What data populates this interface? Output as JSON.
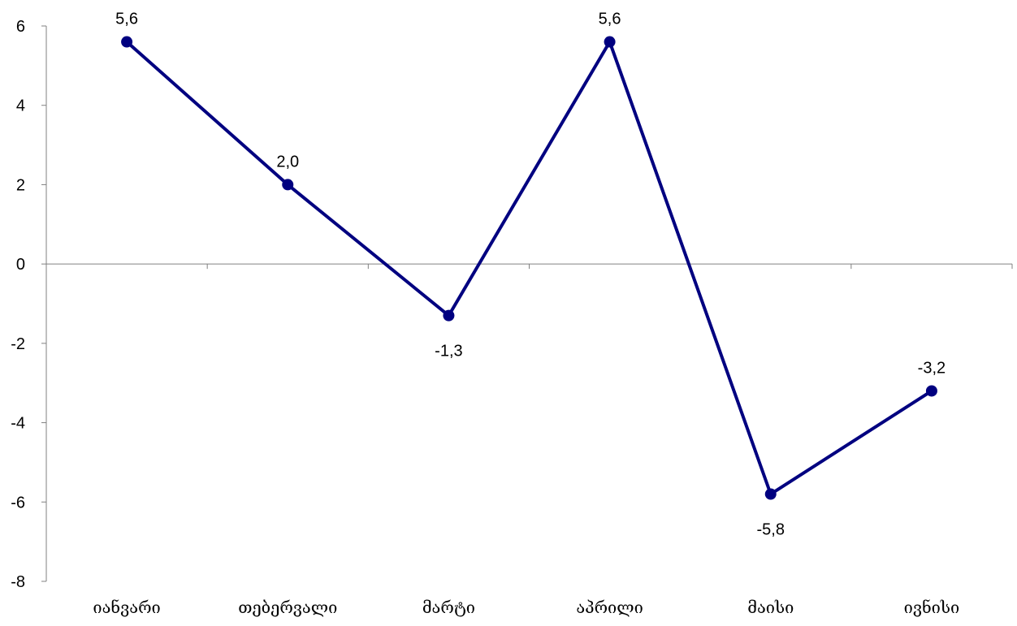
{
  "chart_data": {
    "type": "line",
    "title": "",
    "xlabel": "",
    "ylabel": "",
    "categories": [
      "იანვარი",
      "თებერვალი",
      "მარტი",
      "აპრილი",
      "მაისი",
      "ივნისი"
    ],
    "series": [
      {
        "values": [
          5.6,
          2.0,
          -1.3,
          5.6,
          -5.8,
          -3.2
        ],
        "data_labels": [
          "5,6",
          "2,0",
          "-1,3",
          "5,6",
          "-5,8",
          "-3,2"
        ],
        "color": "#000080",
        "marker": "circle"
      }
    ],
    "ylim": [
      -8,
      6
    ],
    "yticks": [
      "-8",
      "-6",
      "-4",
      "-2",
      "0",
      "2",
      "4",
      "6"
    ],
    "grid": false,
    "legend": "none"
  }
}
